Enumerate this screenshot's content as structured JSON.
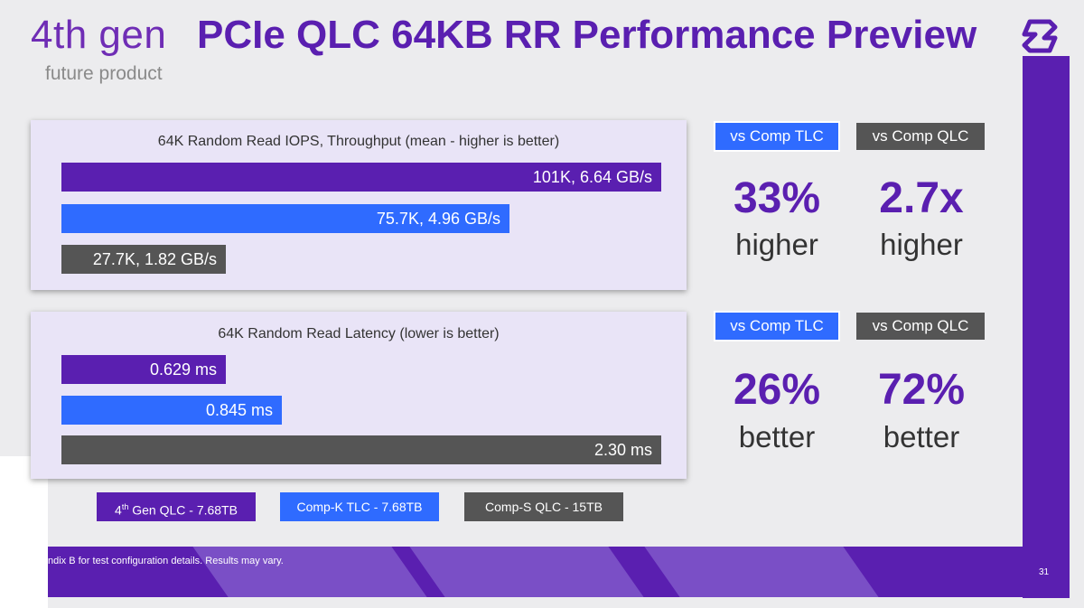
{
  "header": {
    "title_light": "4th gen",
    "title_bold": "PCIe QLC 64KB RR Performance Preview",
    "subtitle": "future product"
  },
  "colors": {
    "gen4_qlc": "#5a1fb0",
    "comp_k_tlc": "#2f6bff",
    "comp_s_qlc": "#555555",
    "accent": "#5a1fb0"
  },
  "chart_data": [
    {
      "type": "bar",
      "orientation": "horizontal",
      "title": "64K Random Read IOPS, Throughput (mean - higher is better)",
      "categories": [
        "4th Gen QLC - 7.68TB",
        "Comp-K TLC - 7.68TB",
        "Comp-S QLC - 15TB"
      ],
      "series": [
        {
          "name": "IOPS (K)",
          "values": [
            101,
            75.7,
            27.7
          ]
        },
        {
          "name": "Throughput (GB/s)",
          "values": [
            6.64,
            4.96,
            1.82
          ]
        }
      ],
      "labels": [
        "101K, 6.64 GB/s",
        "75.7K, 4.96 GB/s",
        "27.7K, 1.82 GB/s"
      ],
      "xlim": [
        0,
        6.64
      ]
    },
    {
      "type": "bar",
      "orientation": "horizontal",
      "title": "64K Random Read Latency (lower is better)",
      "categories": [
        "4th Gen QLC - 7.68TB",
        "Comp-K TLC - 7.68TB",
        "Comp-S QLC - 15TB"
      ],
      "series": [
        {
          "name": "Latency (ms)",
          "values": [
            0.629,
            0.845,
            2.3
          ]
        }
      ],
      "labels": [
        "0.629 ms",
        "0.845 ms",
        "2.30 ms"
      ],
      "xlim": [
        0,
        2.3
      ]
    }
  ],
  "comparisons": {
    "iops": [
      {
        "badge": "vs Comp TLC",
        "value": "33%",
        "word": "higher"
      },
      {
        "badge": "vs Comp QLC",
        "value": "2.7x",
        "word": "higher"
      }
    ],
    "latency": [
      {
        "badge": "vs Comp TLC",
        "value": "26%",
        "word": "better"
      },
      {
        "badge": "vs Comp QLC",
        "value": "72%",
        "word": "better"
      }
    ]
  },
  "legend": {
    "gen4_prefix": "4",
    "gen4_sup": "th",
    "gen4_rest": " Gen QLC - 7.68TB",
    "comp_k": "Comp-K TLC - 7.68TB",
    "comp_s": "Comp-S QLC - 15TB"
  },
  "footer": {
    "note": "ndix B for test configuration details. Results may vary.",
    "page": "31"
  }
}
